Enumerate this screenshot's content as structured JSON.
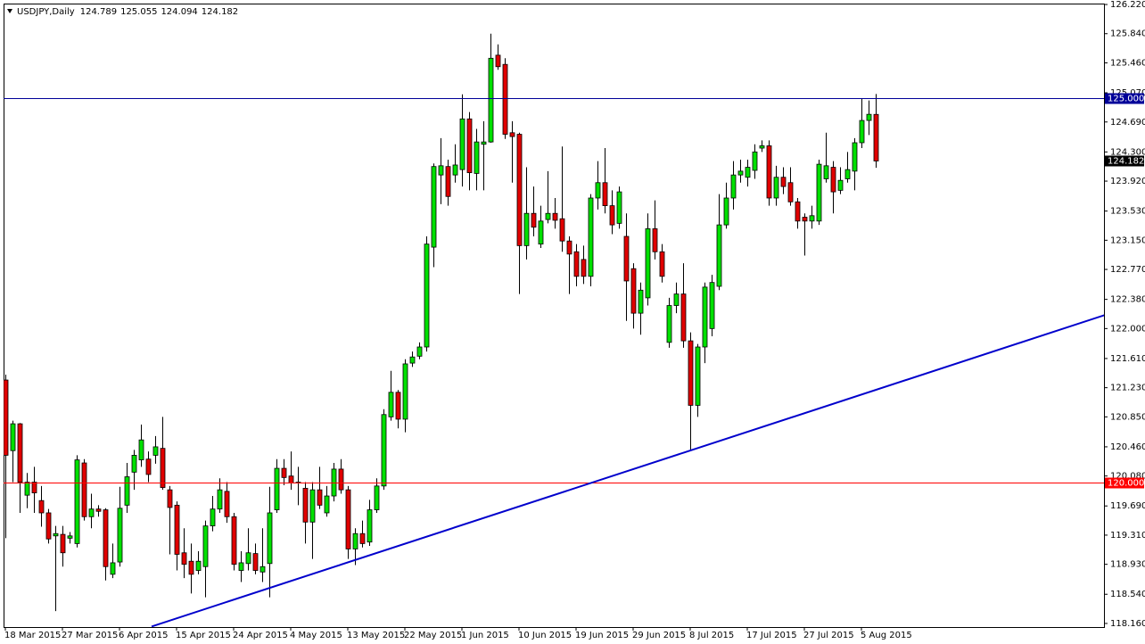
{
  "chart_data": {
    "type": "candlestick",
    "title": "USDJPY,Daily",
    "categories": [
      "18 Mar 2015",
      null,
      null,
      null,
      null,
      null,
      null,
      null,
      "27 Mar 2015",
      null,
      null,
      null,
      null,
      null,
      null,
      null,
      "6 Apr 2015",
      null,
      null,
      null,
      null,
      null,
      null,
      null,
      "15 Apr 2015",
      null,
      null,
      null,
      null,
      null,
      null,
      null,
      "24 Apr 2015",
      null,
      null,
      null,
      null,
      null,
      null,
      null,
      "4 May 2015",
      null,
      null,
      null,
      null,
      null,
      null,
      null,
      "13 May 2015",
      null,
      null,
      null,
      null,
      null,
      null,
      null,
      "22 May 2015",
      null,
      null,
      null,
      null,
      null,
      null,
      null,
      "1 Jun 2015",
      null,
      null,
      null,
      null,
      null,
      null,
      null,
      "10 Jun 2015",
      null,
      null,
      null,
      null,
      null,
      null,
      null,
      "19 Jun 2015",
      null,
      null,
      null,
      null,
      null,
      null,
      null,
      "29 Jun 2015",
      null,
      null,
      null,
      null,
      null,
      null,
      null,
      "8 Jul 2015",
      null,
      null,
      null,
      null,
      null,
      null,
      null,
      "17 Jul 2015",
      null,
      null,
      null,
      null,
      null,
      null,
      null,
      "27 Jul 2015",
      null,
      null,
      null,
      null,
      null,
      null,
      null,
      "5 Aug 2015",
      null,
      null
    ],
    "open": [
      121.33,
      120.41,
      120.76,
      119.83,
      120,
      119.76,
      119.6,
      119.3,
      119.32,
      119.27,
      119.2,
      120.25,
      119.55,
      119.65,
      119.64,
      118.8,
      118.96,
      119.7,
      120.13,
      120.29,
      120.3,
      120.35,
      120.44,
      119.9,
      119.7,
      119.08,
      118.97,
      118.85,
      118.9,
      119.43,
      119.65,
      119.88,
      119.55,
      118.85,
      118.94,
      119.07,
      118.83,
      118.94,
      119.64,
      120.18,
      120.08,
      119.99,
      119.92,
      119.48,
      119.9,
      119.6,
      119.82,
      120.17,
      119.9,
      119.13,
      119.33,
      119.22,
      119.64,
      119.95,
      120.85,
      121.17,
      120.82,
      121.55,
      121.64,
      121.76,
      123.06,
      124,
      124.11,
      124,
      124.07,
      124.73,
      124.02,
      124.4,
      124.43,
      125.56,
      125.44,
      124.55,
      124.53,
      123.08,
      123.5,
      123.1,
      123.42,
      123.5,
      123.43,
      123.14,
      123,
      122.9,
      122.68,
      123.7,
      123.9,
      123.6,
      123.37,
      123.2,
      122.78,
      122.2,
      122.4,
      123.3,
      123,
      121.82,
      122.3,
      122.45,
      121.84,
      121,
      121.76,
      122,
      122.55,
      123.35,
      123.7,
      124,
      123.97,
      124.06,
      124.35,
      124.38,
      123.7,
      123.97,
      123.9,
      123.65,
      123.45,
      123.4,
      123.4,
      123.95,
      124.1,
      123.8,
      123.95,
      124.05,
      124.42,
      124.71,
      124.789
    ],
    "high": [
      121.4,
      120.8,
      120.77,
      120.12,
      120.2,
      119.95,
      119.65,
      119.43,
      119.43,
      119.35,
      120.35,
      120.3,
      119.85,
      119.7,
      119.66,
      119.2,
      119.94,
      120.25,
      120.42,
      120.75,
      120.4,
      120.6,
      120.85,
      119.95,
      119.75,
      119.4,
      119.2,
      119.1,
      119.5,
      119.82,
      120.05,
      120,
      119.6,
      119.1,
      119.4,
      119.2,
      119.4,
      119.94,
      120.3,
      120.3,
      120.4,
      120.2,
      120,
      120,
      120.2,
      119.95,
      120.25,
      120.3,
      119.95,
      119.4,
      119.5,
      119.77,
      120.05,
      120.95,
      121.45,
      121.2,
      121.6,
      121.7,
      121.82,
      123.2,
      124.15,
      124.48,
      124.2,
      124.4,
      125.05,
      124.82,
      124.6,
      124.7,
      125.84,
      125.7,
      125.52,
      124.7,
      124.55,
      124.1,
      123.85,
      123.6,
      124.05,
      123.7,
      124.37,
      123.2,
      123.1,
      123.08,
      123.75,
      124.18,
      124.35,
      123.8,
      123.85,
      123.5,
      122.85,
      122.6,
      123.5,
      123.67,
      123.1,
      122.4,
      122.6,
      122.85,
      121.95,
      121.8,
      122.6,
      122.7,
      123.75,
      123.9,
      124.18,
      124.2,
      124.2,
      124.4,
      124.45,
      124.45,
      124.12,
      124.1,
      124.1,
      123.7,
      123.5,
      123.6,
      124.2,
      124.55,
      124.18,
      124.1,
      124.3,
      124.48,
      125,
      124.97,
      125.055
    ],
    "low": [
      119.27,
      120,
      119.6,
      119.66,
      119.6,
      119.42,
      119.2,
      118.32,
      118.9,
      119.2,
      119.15,
      119.5,
      119.4,
      119.55,
      118.72,
      118.75,
      118.9,
      119.6,
      119.9,
      120.2,
      120,
      120.24,
      119.9,
      119.06,
      118.85,
      118.75,
      118.55,
      118.8,
      118.5,
      119.36,
      119.6,
      119.47,
      118.85,
      118.7,
      118.85,
      118.8,
      118.7,
      118.5,
      119.6,
      119.96,
      119.9,
      119.7,
      119.2,
      119,
      119.65,
      119.55,
      119.75,
      119.85,
      119,
      118.92,
      119.15,
      119.17,
      119.6,
      119.9,
      120.8,
      120.7,
      120.65,
      121.5,
      121.6,
      121.7,
      122.8,
      123.62,
      123.6,
      123.9,
      123.85,
      123.8,
      123.8,
      123.8,
      124.42,
      125.37,
      124.47,
      123.9,
      122.45,
      122.9,
      123.2,
      123.05,
      123.37,
      123.3,
      123,
      122.45,
      122.55,
      122.58,
      122.55,
      123.55,
      123.5,
      123.23,
      123.3,
      122.1,
      122,
      121.92,
      122.3,
      122.9,
      122.6,
      121.75,
      122.2,
      121.75,
      120.41,
      120.85,
      121.55,
      121.9,
      122.5,
      123.3,
      123.55,
      123.9,
      123.85,
      123.95,
      124.3,
      123.6,
      123.6,
      123.75,
      123.6,
      123.3,
      122.95,
      123.3,
      123.35,
      123.9,
      123.5,
      123.75,
      123.9,
      123.8,
      124.35,
      124.52,
      124.094
    ],
    "close": [
      120.35,
      120.76,
      120,
      120,
      119.86,
      119.6,
      119.26,
      119.33,
      119.08,
      119.3,
      120.29,
      119.55,
      119.65,
      119.62,
      118.9,
      118.95,
      119.66,
      120.07,
      120.35,
      120.55,
      120.1,
      120.46,
      119.93,
      119.67,
      119.06,
      118.93,
      118.8,
      118.97,
      119.43,
      119.65,
      119.9,
      119.55,
      118.93,
      118.95,
      119.08,
      118.85,
      118.9,
      119.6,
      120.18,
      120.06,
      119.99,
      120,
      119.48,
      119.9,
      119.7,
      119.82,
      120.17,
      119.9,
      119.13,
      119.33,
      119.2,
      119.64,
      119.95,
      120.88,
      121.17,
      120.82,
      121.54,
      121.63,
      121.76,
      123.1,
      124.11,
      124.12,
      123.72,
      124.13,
      124.73,
      124.03,
      124.43,
      124.43,
      125.52,
      125.41,
      124.53,
      124.5,
      123.08,
      123.5,
      123.32,
      123.4,
      123.5,
      123.41,
      123.14,
      122.97,
      122.68,
      122.68,
      123.7,
      123.9,
      123.6,
      123.35,
      123.78,
      122.62,
      122.2,
      122.5,
      123.3,
      123,
      122.68,
      122.3,
      122.45,
      121.84,
      121,
      121.76,
      122.54,
      122.6,
      123.35,
      123.7,
      124,
      124.05,
      124.1,
      124.3,
      124.38,
      123.7,
      123.97,
      123.85,
      123.65,
      123.4,
      123.4,
      123.47,
      124.14,
      124.12,
      123.78,
      123.93,
      124.07,
      124.42,
      124.71,
      124.79,
      124.182
    ],
    "up_color": "#00e000",
    "down_color": "#e00000",
    "ylim": [
      118.113,
      126.232
    ],
    "yticks": [
      {
        "value": 118.16,
        "label": "118.160"
      },
      {
        "value": 118.54,
        "label": "118.540"
      },
      {
        "value": 118.93,
        "label": "118.930"
      },
      {
        "value": 119.31,
        "label": "119.310"
      },
      {
        "value": 119.69,
        "label": "119.690"
      },
      {
        "value": 120.08,
        "label": "120.080"
      },
      {
        "value": 120.46,
        "label": "120.460"
      },
      {
        "value": 120.85,
        "label": "120.850"
      },
      {
        "value": 121.23,
        "label": "121.230"
      },
      {
        "value": 121.61,
        "label": "121.610"
      },
      {
        "value": 122,
        "label": "122.000"
      },
      {
        "value": 122.38,
        "label": "122.380"
      },
      {
        "value": 122.77,
        "label": "122.770"
      },
      {
        "value": 123.15,
        "label": "123.150"
      },
      {
        "value": 123.53,
        "label": "123.530"
      },
      {
        "value": 123.92,
        "label": "123.920"
      },
      {
        "value": 124.3,
        "label": "124.300"
      },
      {
        "value": 124.69,
        "label": "124.690"
      },
      {
        "value": 125.07,
        "label": "125.070"
      },
      {
        "value": 125.46,
        "label": "125.460"
      },
      {
        "value": 125.84,
        "label": "125.840"
      },
      {
        "value": 126.22,
        "label": "126.220"
      }
    ],
    "levels": [
      {
        "value": 125,
        "label": "125.000",
        "color": "#000099"
      },
      {
        "value": 120,
        "label": "120.000",
        "color": "#ff0000"
      }
    ],
    "trend_line": {
      "x": [
        20.5,
        154.25
      ],
      "values": [
        118.12,
        122.18
      ],
      "color": "#0000cc"
    }
  }
}
